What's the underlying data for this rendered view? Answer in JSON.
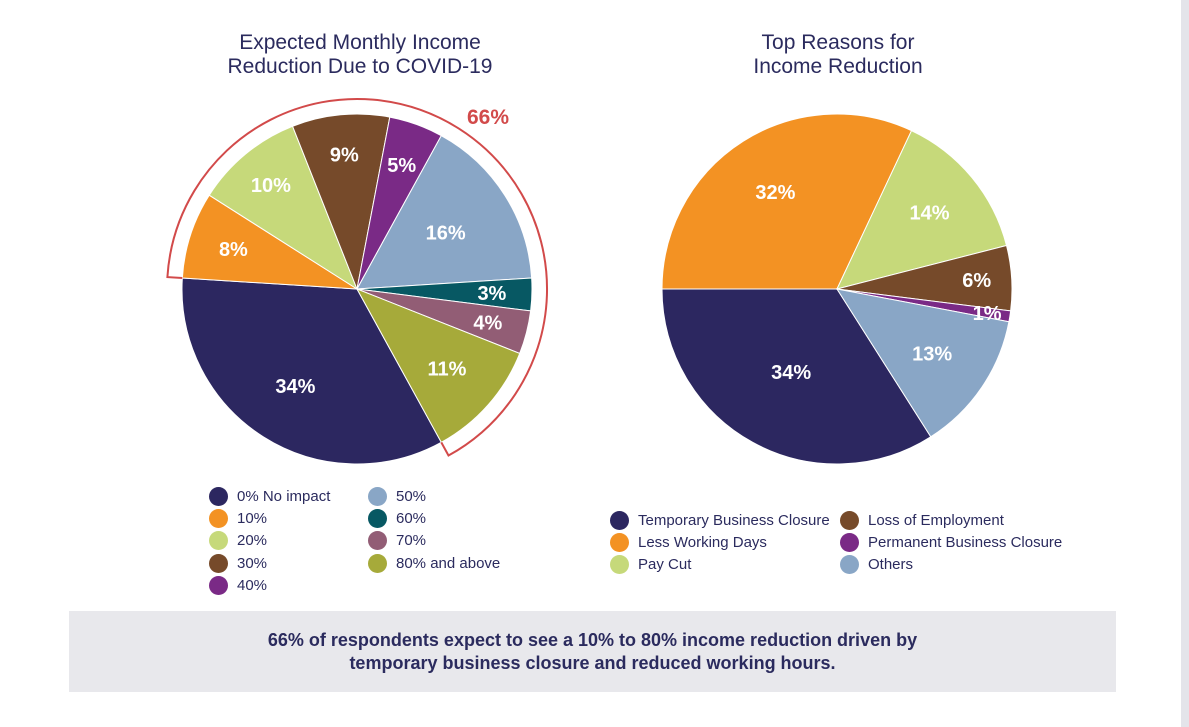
{
  "chart_data": [
    {
      "type": "pie",
      "title_lines": [
        "Expected Monthly Income",
        "Reduction Due to COVID-19"
      ],
      "categories": [
        "0% No impact",
        "10%",
        "20%",
        "30%",
        "40%",
        "50%",
        "60%",
        "70%",
        "80% and above"
      ],
      "values": [
        34,
        8,
        10,
        9,
        5,
        16,
        3,
        4,
        11
      ],
      "labels": [
        "34%",
        "8%",
        "10%",
        "9%",
        "5%",
        "16%",
        "3%",
        "4%",
        "11%"
      ],
      "colors": [
        "#2c2760",
        "#f39223",
        "#c6d97a",
        "#764a2a",
        "#7a2a86",
        "#89a6c6",
        "#075863",
        "#925d75",
        "#a6aa3a"
      ],
      "annotation": {
        "text": "66%",
        "covers": "10% to 80% and above",
        "color": "#d24a4a"
      }
    },
    {
      "type": "pie",
      "title_lines": [
        "Top Reasons for",
        "Income Reduction"
      ],
      "categories": [
        "Temporary Business Closure",
        "Less Working Days",
        "Pay Cut",
        "Loss of Employment",
        "Permanent Business Closure",
        "Others"
      ],
      "values": [
        34,
        32,
        14,
        6,
        1,
        13
      ],
      "labels": [
        "34%",
        "32%",
        "14%",
        "6%",
        "1%",
        "13%"
      ],
      "colors": [
        "#2c2760",
        "#f39223",
        "#c6d97a",
        "#764a2a",
        "#7a2a86",
        "#89a6c6"
      ]
    }
  ],
  "callout": {
    "lines": [
      "66% of respondents expect to see a 10% to 80% income reduction driven by",
      "temporary business closure and reduced working hours."
    ]
  }
}
